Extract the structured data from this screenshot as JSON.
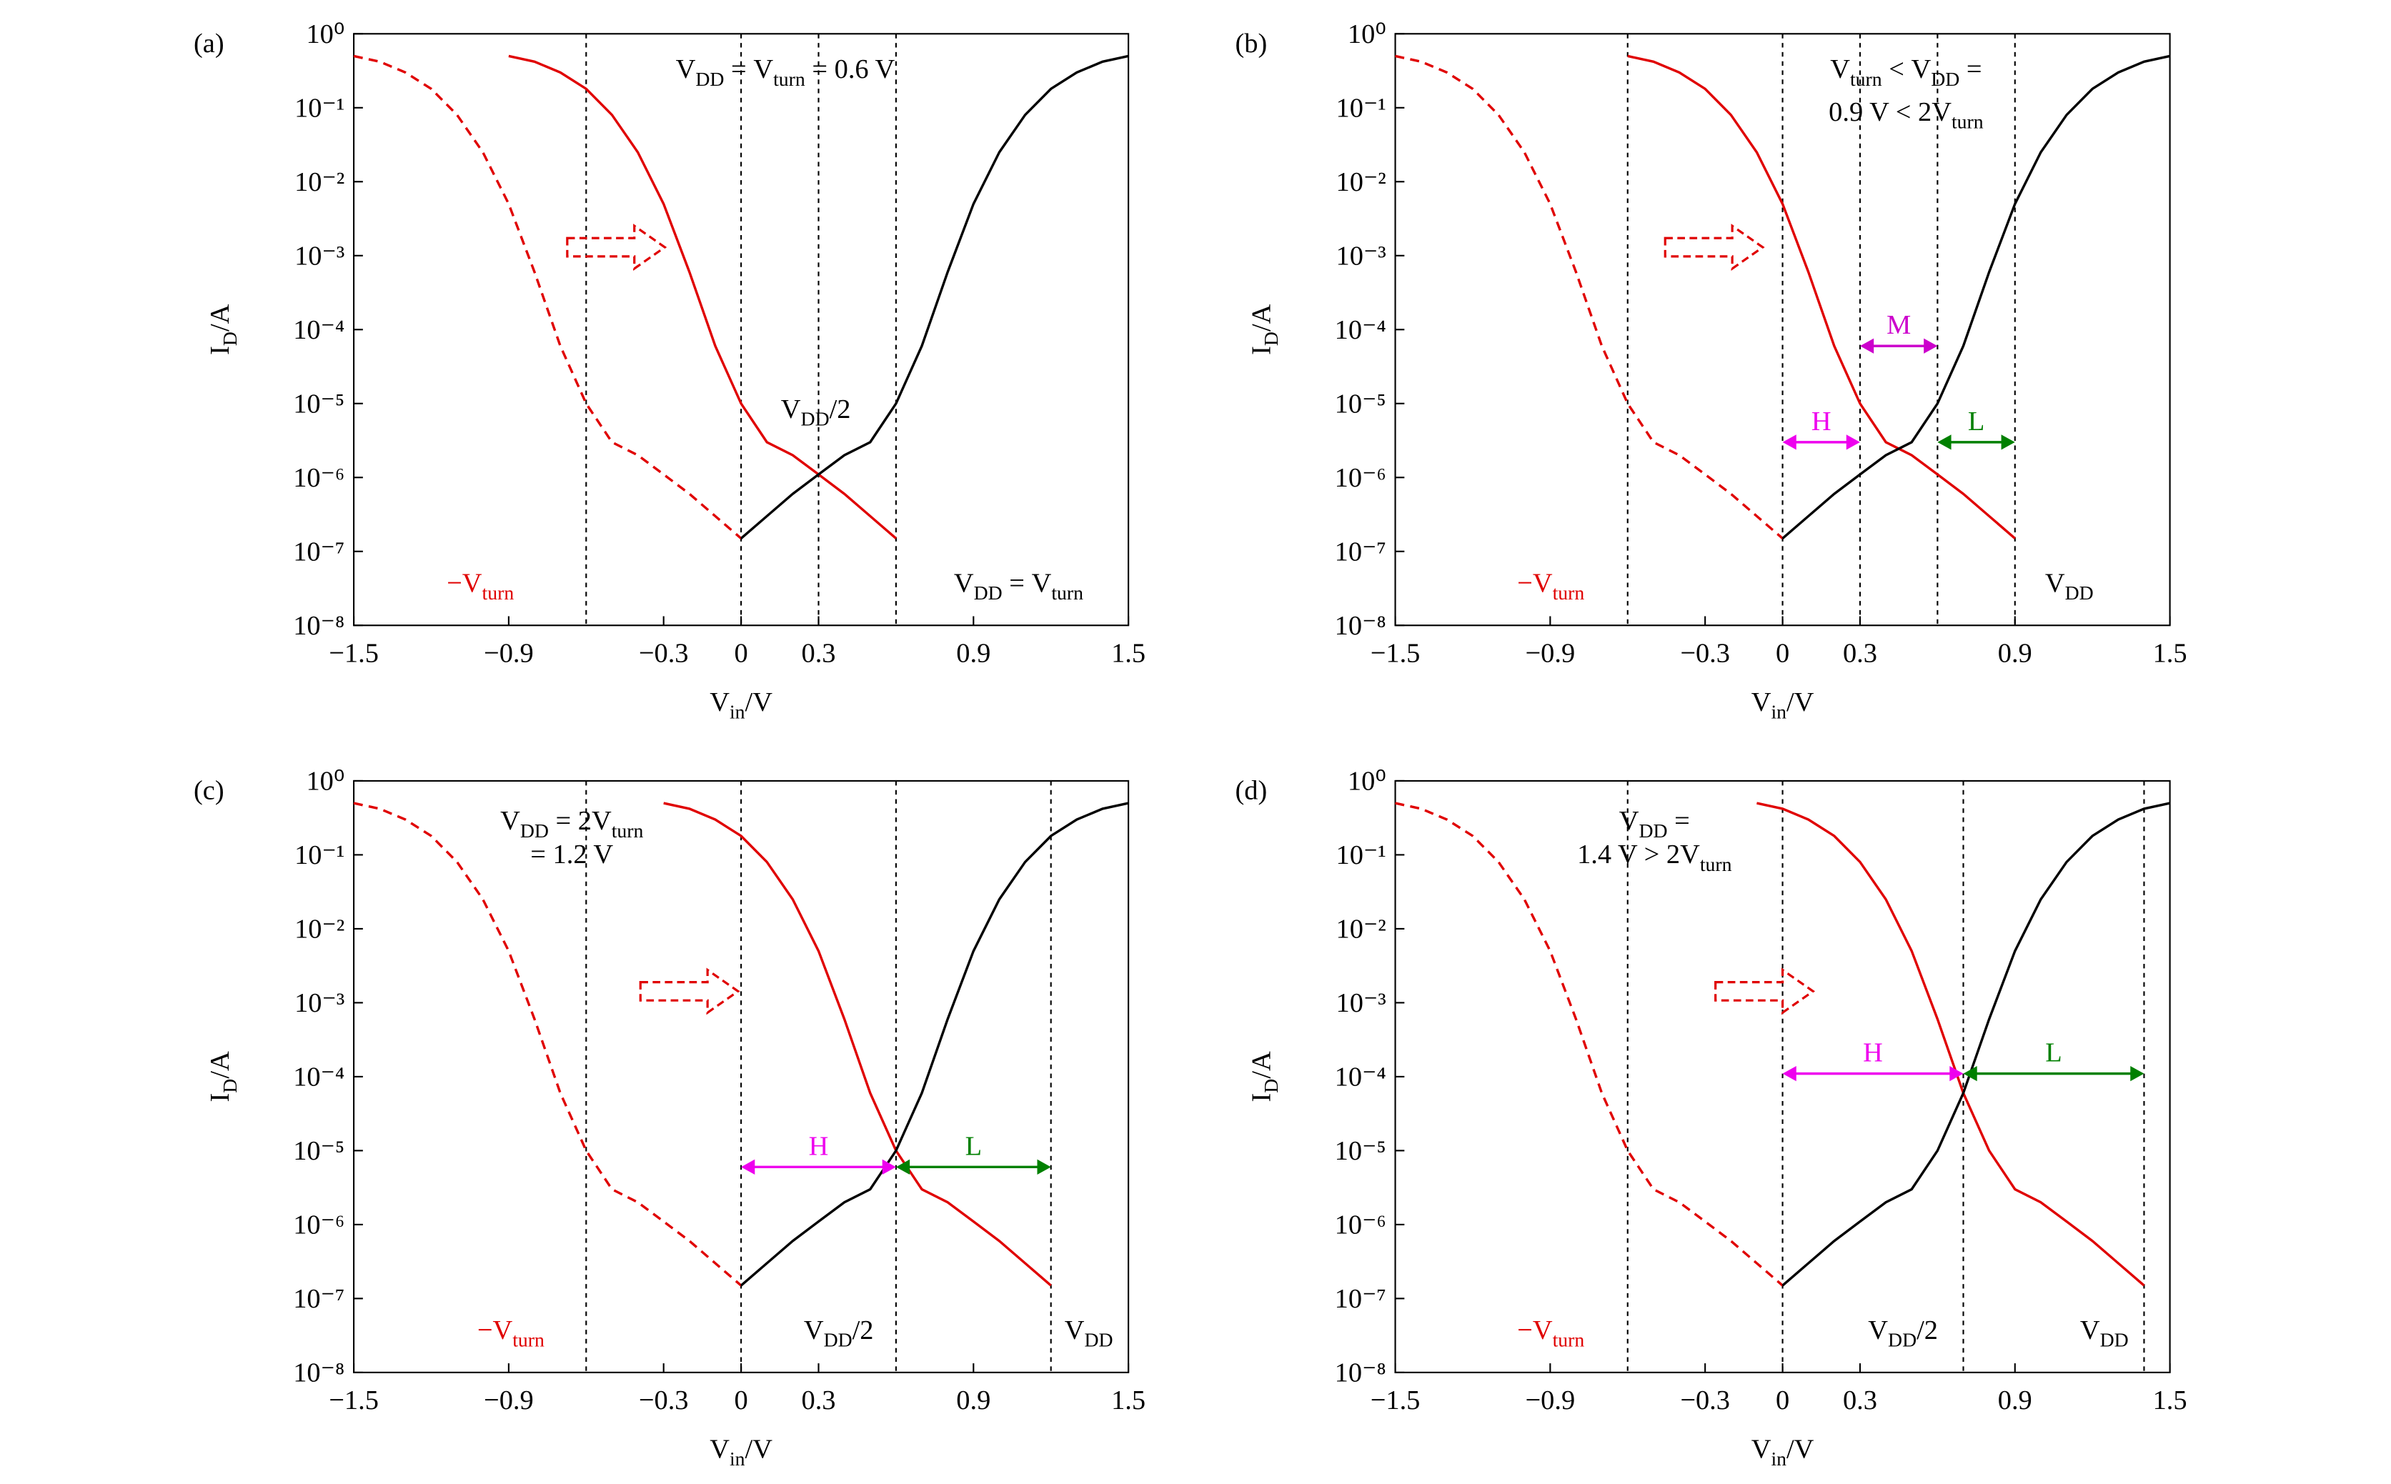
{
  "chart_data": [
    {
      "type": "line",
      "panel_label": "(a)",
      "xlabel": {
        "parts": [
          "V",
          "in",
          "/V"
        ],
        "sub": [
          false,
          true,
          false
        ]
      },
      "ylabel": {
        "parts": [
          "I",
          "D",
          "/A"
        ],
        "sub": [
          false,
          true,
          false
        ]
      },
      "xlim": [
        -1.5,
        1.5
      ],
      "ylim": [
        1e-08,
        1
      ],
      "log_y": true,
      "xticks": [
        {
          "value": -1.5,
          "label": "−1.5"
        },
        {
          "value": -0.9,
          "label": "−0.9"
        },
        {
          "value": -0.3,
          "label": "−0.3"
        },
        0,
        0.3,
        0.9,
        1.5
      ],
      "yticks": [
        {
          "value": 1e-08,
          "label": "10⁻⁸"
        },
        {
          "value": 1e-07,
          "label": "10⁻⁷"
        },
        {
          "value": 1e-06,
          "label": "10⁻⁶"
        },
        {
          "value": 1e-05,
          "label": "10⁻⁵"
        },
        {
          "value": 0.0001,
          "label": "10⁻⁴"
        },
        {
          "value": 0.001,
          "label": "10⁻³"
        },
        {
          "value": 0.01,
          "label": "10⁻²"
        },
        {
          "value": 0.1,
          "label": "10⁻¹"
        },
        {
          "value": 1,
          "label": "10⁰"
        }
      ],
      "vlines": [
        -0.6,
        0,
        0.3,
        0.6
      ],
      "series": [
        {
          "color": "#e00000",
          "dash": true,
          "x": [
            -1.5,
            -1.4,
            -1.3,
            -1.2,
            -1.1,
            -1.0,
            -0.9,
            -0.8,
            -0.7,
            -0.6,
            -0.5,
            -0.4,
            -0.3,
            -0.2,
            -0.1,
            0
          ],
          "values": [
            0.5,
            0.42,
            0.3,
            0.18,
            0.08,
            0.025,
            0.005,
            0.0006,
            6e-05,
            1e-05,
            3e-06,
            2e-06,
            1.1e-06,
            6e-07,
            3e-07,
            1.5e-07
          ]
        },
        {
          "color": "#e00000",
          "dash": false,
          "x": [
            -0.9,
            -0.8,
            -0.7,
            -0.6,
            -0.5,
            -0.4,
            -0.3,
            -0.2,
            -0.1,
            0,
            0.1,
            0.2,
            0.3,
            0.4,
            0.5,
            0.6
          ],
          "values": [
            0.5,
            0.42,
            0.3,
            0.18,
            0.08,
            0.025,
            0.005,
            0.0006,
            6e-05,
            1e-05,
            3e-06,
            2e-06,
            1.1e-06,
            6e-07,
            3e-07,
            1.5e-07
          ]
        },
        {
          "color": "#000000",
          "dash": false,
          "x": [
            0,
            0.1,
            0.2,
            0.3,
            0.4,
            0.5,
            0.6,
            0.7,
            0.8,
            0.9,
            1.0,
            1.1,
            1.2,
            1.3,
            1.4,
            1.5
          ],
          "values": [
            1.5e-07,
            3e-07,
            6e-07,
            1.1e-06,
            2e-06,
            3e-06,
            1e-05,
            6e-05,
            0.0006,
            0.005,
            0.025,
            0.08,
            0.18,
            0.3,
            0.42,
            0.5
          ]
        }
      ],
      "annotations": [
        {
          "parts": [
            "V",
            "DD",
            " = ",
            "V",
            "turn",
            " = 0.6 V"
          ],
          "sub": [
            false,
            true,
            false,
            false,
            true,
            false
          ]
        },
        {
          "parts": [
            "V",
            "DD",
            "/2"
          ],
          "sub": [
            false,
            true,
            false
          ]
        },
        {
          "parts": [
            "−V",
            "turn"
          ],
          "sub": [
            false,
            true
          ],
          "color": "#e00000"
        },
        {
          "parts": [
            "V",
            "DD",
            " = ",
            "V",
            "turn"
          ],
          "sub": [
            false,
            true,
            false,
            false,
            true
          ]
        }
      ],
      "spans": []
    },
    {
      "type": "line",
      "panel_label": "(b)",
      "xlabel": {
        "parts": [
          "V",
          "in",
          "/V"
        ],
        "sub": [
          false,
          true,
          false
        ]
      },
      "ylabel": {
        "parts": [
          "I",
          "D",
          "/A"
        ],
        "sub": [
          false,
          true,
          false
        ]
      },
      "xlim": [
        -1.5,
        1.5
      ],
      "ylim": [
        1e-08,
        1
      ],
      "log_y": true,
      "xticks": [
        {
          "value": -1.5,
          "label": "−1.5"
        },
        {
          "value": -0.9,
          "label": "−0.9"
        },
        {
          "value": -0.3,
          "label": "−0.3"
        },
        0,
        0.3,
        0.9,
        1.5
      ],
      "yticks": [
        {
          "value": 1e-08,
          "label": "10⁻⁸"
        },
        {
          "value": 1e-07,
          "label": "10⁻⁷"
        },
        {
          "value": 1e-06,
          "label": "10⁻⁶"
        },
        {
          "value": 1e-05,
          "label": "10⁻⁵"
        },
        {
          "value": 0.0001,
          "label": "10⁻⁴"
        },
        {
          "value": 0.001,
          "label": "10⁻³"
        },
        {
          "value": 0.01,
          "label": "10⁻²"
        },
        {
          "value": 0.1,
          "label": "10⁻¹"
        },
        {
          "value": 1,
          "label": "10⁰"
        }
      ],
      "vlines": [
        -0.6,
        0,
        0.3,
        0.6,
        0.9
      ],
      "series": [
        {
          "color": "#e00000",
          "dash": true,
          "x": [
            -1.5,
            -1.4,
            -1.3,
            -1.2,
            -1.1,
            -1.0,
            -0.9,
            -0.8,
            -0.7,
            -0.6,
            -0.5,
            -0.4,
            -0.3,
            -0.2,
            -0.1,
            0
          ],
          "values": [
            0.5,
            0.42,
            0.3,
            0.18,
            0.08,
            0.025,
            0.005,
            0.0006,
            6e-05,
            1e-05,
            3e-06,
            2e-06,
            1.1e-06,
            6e-07,
            3e-07,
            1.5e-07
          ]
        },
        {
          "color": "#e00000",
          "dash": false,
          "x": [
            -0.6,
            -0.5,
            -0.4,
            -0.3,
            -0.2,
            -0.1,
            0,
            0.1,
            0.2,
            0.3,
            0.4,
            0.5,
            0.6,
            0.7,
            0.8,
            0.9
          ],
          "values": [
            0.5,
            0.42,
            0.3,
            0.18,
            0.08,
            0.025,
            0.005,
            0.0006,
            6e-05,
            1e-05,
            3e-06,
            2e-06,
            1.1e-06,
            6e-07,
            3e-07,
            1.5e-07
          ]
        },
        {
          "color": "#000000",
          "dash": false,
          "x": [
            0,
            0.1,
            0.2,
            0.3,
            0.4,
            0.5,
            0.6,
            0.7,
            0.8,
            0.9,
            1.0,
            1.1,
            1.2,
            1.3,
            1.4,
            1.5
          ],
          "values": [
            1.5e-07,
            3e-07,
            6e-07,
            1.1e-06,
            2e-06,
            3e-06,
            1e-05,
            6e-05,
            0.0006,
            0.005,
            0.025,
            0.08,
            0.18,
            0.3,
            0.42,
            0.5
          ]
        }
      ],
      "annotations": [
        {
          "parts": [
            "V",
            "turn",
            " < ",
            "V",
            "DD",
            " ="
          ],
          "sub": [
            false,
            true,
            false,
            false,
            true,
            false
          ]
        },
        {
          "parts": [
            "0.9 V < 2V",
            "turn"
          ],
          "sub": [
            false,
            true
          ]
        },
        {
          "parts": [
            "−V",
            "turn"
          ],
          "sub": [
            false,
            true
          ],
          "color": "#e00000"
        },
        {
          "parts": [
            "V",
            "DD"
          ],
          "sub": [
            false,
            true
          ]
        }
      ],
      "spans": [
        {
          "label": "M",
          "color": "#cc00cc",
          "from": 0.3,
          "to": 0.6,
          "at": 6e-05
        },
        {
          "label": "H",
          "color": "#ee00ee",
          "from": 0,
          "to": 0.3,
          "at": 3e-06
        },
        {
          "label": "L",
          "color": "#008000",
          "from": 0.6,
          "to": 0.9,
          "at": 3e-06
        }
      ]
    },
    {
      "type": "line",
      "panel_label": "(c)",
      "xlabel": {
        "parts": [
          "V",
          "in",
          "/V"
        ],
        "sub": [
          false,
          true,
          false
        ]
      },
      "ylabel": {
        "parts": [
          "I",
          "D",
          "/A"
        ],
        "sub": [
          false,
          true,
          false
        ]
      },
      "xlim": [
        -1.5,
        1.5
      ],
      "ylim": [
        1e-08,
        1
      ],
      "log_y": true,
      "xticks": [
        {
          "value": -1.5,
          "label": "−1.5"
        },
        {
          "value": -0.9,
          "label": "−0.9"
        },
        {
          "value": -0.3,
          "label": "−0.3"
        },
        0,
        0.3,
        0.9,
        1.5
      ],
      "yticks": [
        {
          "value": 1e-08,
          "label": "10⁻⁸"
        },
        {
          "value": 1e-07,
          "label": "10⁻⁷"
        },
        {
          "value": 1e-06,
          "label": "10⁻⁶"
        },
        {
          "value": 1e-05,
          "label": "10⁻⁵"
        },
        {
          "value": 0.0001,
          "label": "10⁻⁴"
        },
        {
          "value": 0.001,
          "label": "10⁻³"
        },
        {
          "value": 0.01,
          "label": "10⁻²"
        },
        {
          "value": 0.1,
          "label": "10⁻¹"
        },
        {
          "value": 1,
          "label": "10⁰"
        }
      ],
      "vlines": [
        -0.6,
        0,
        0.6,
        1.2
      ],
      "series": [
        {
          "color": "#e00000",
          "dash": true,
          "x": [
            -1.5,
            -1.4,
            -1.3,
            -1.2,
            -1.1,
            -1.0,
            -0.9,
            -0.8,
            -0.7,
            -0.6,
            -0.5,
            -0.4,
            -0.3,
            -0.2,
            -0.1,
            0
          ],
          "values": [
            0.5,
            0.42,
            0.3,
            0.18,
            0.08,
            0.025,
            0.005,
            0.0006,
            6e-05,
            1e-05,
            3e-06,
            2e-06,
            1.1e-06,
            6e-07,
            3e-07,
            1.5e-07
          ]
        },
        {
          "color": "#e00000",
          "dash": false,
          "x": [
            -0.3,
            -0.2,
            -0.1,
            0,
            0.1,
            0.2,
            0.3,
            0.4,
            0.5,
            0.6,
            0.7,
            0.8,
            0.9,
            1.0,
            1.1,
            1.2
          ],
          "values": [
            0.5,
            0.42,
            0.3,
            0.18,
            0.08,
            0.025,
            0.005,
            0.0006,
            6e-05,
            1e-05,
            3e-06,
            2e-06,
            1.1e-06,
            6e-07,
            3e-07,
            1.5e-07
          ]
        },
        {
          "color": "#000000",
          "dash": false,
          "x": [
            0,
            0.1,
            0.2,
            0.3,
            0.4,
            0.5,
            0.6,
            0.7,
            0.8,
            0.9,
            1.0,
            1.1,
            1.2,
            1.3,
            1.4,
            1.5
          ],
          "values": [
            1.5e-07,
            3e-07,
            6e-07,
            1.1e-06,
            2e-06,
            3e-06,
            1e-05,
            6e-05,
            0.0006,
            0.005,
            0.025,
            0.08,
            0.18,
            0.3,
            0.42,
            0.5
          ]
        }
      ],
      "annotations": [
        {
          "parts": [
            "V",
            "DD",
            " = 2V",
            "turn"
          ],
          "sub": [
            false,
            true,
            false,
            true
          ]
        },
        {
          "parts": [
            "= 1.2 V"
          ],
          "sub": [
            false
          ]
        },
        {
          "parts": [
            "−V",
            "turn"
          ],
          "sub": [
            false,
            true
          ],
          "color": "#e00000"
        },
        {
          "parts": [
            "V",
            "DD",
            "/2"
          ],
          "sub": [
            false,
            true,
            false
          ]
        },
        {
          "parts": [
            "V",
            "DD"
          ],
          "sub": [
            false,
            true
          ]
        }
      ],
      "spans": [
        {
          "label": "H",
          "color": "#ee00ee",
          "from": 0,
          "to": 0.6,
          "at": 6e-06
        },
        {
          "label": "L",
          "color": "#008000",
          "from": 0.6,
          "to": 1.2,
          "at": 6e-06
        }
      ]
    },
    {
      "type": "line",
      "panel_label": "(d)",
      "xlabel": {
        "parts": [
          "V",
          "in",
          "/V"
        ],
        "sub": [
          false,
          true,
          false
        ]
      },
      "ylabel": {
        "parts": [
          "I",
          "D",
          "/A"
        ],
        "sub": [
          false,
          true,
          false
        ]
      },
      "xlim": [
        -1.5,
        1.5
      ],
      "ylim": [
        1e-08,
        1
      ],
      "log_y": true,
      "xticks": [
        {
          "value": -1.5,
          "label": "−1.5"
        },
        {
          "value": -0.9,
          "label": "−0.9"
        },
        {
          "value": -0.3,
          "label": "−0.3"
        },
        0,
        0.3,
        0.9,
        1.5
      ],
      "yticks": [
        {
          "value": 1e-08,
          "label": "10⁻⁸"
        },
        {
          "value": 1e-07,
          "label": "10⁻⁷"
        },
        {
          "value": 1e-06,
          "label": "10⁻⁶"
        },
        {
          "value": 1e-05,
          "label": "10⁻⁵"
        },
        {
          "value": 0.0001,
          "label": "10⁻⁴"
        },
        {
          "value": 0.001,
          "label": "10⁻³"
        },
        {
          "value": 0.01,
          "label": "10⁻²"
        },
        {
          "value": 0.1,
          "label": "10⁻¹"
        },
        {
          "value": 1,
          "label": "10⁰"
        }
      ],
      "vlines": [
        -0.6,
        0,
        0.7,
        1.4
      ],
      "series": [
        {
          "color": "#e00000",
          "dash": true,
          "x": [
            -1.5,
            -1.4,
            -1.3,
            -1.2,
            -1.1,
            -1.0,
            -0.9,
            -0.8,
            -0.7,
            -0.6,
            -0.5,
            -0.4,
            -0.3,
            -0.2,
            -0.1,
            0
          ],
          "values": [
            0.5,
            0.42,
            0.3,
            0.18,
            0.08,
            0.025,
            0.005,
            0.0006,
            6e-05,
            1e-05,
            3e-06,
            2e-06,
            1.1e-06,
            6e-07,
            3e-07,
            1.5e-07
          ]
        },
        {
          "color": "#e00000",
          "dash": false,
          "x": [
            -0.1,
            0,
            0.1,
            0.2,
            0.3,
            0.4,
            0.5,
            0.6,
            0.7,
            0.8,
            0.9,
            1.0,
            1.1,
            1.2,
            1.3,
            1.4
          ],
          "values": [
            0.5,
            0.42,
            0.3,
            0.18,
            0.08,
            0.025,
            0.005,
            0.0006,
            6e-05,
            1e-05,
            3e-06,
            2e-06,
            1.1e-06,
            6e-07,
            3e-07,
            1.5e-07
          ]
        },
        {
          "color": "#000000",
          "dash": false,
          "x": [
            0,
            0.1,
            0.2,
            0.3,
            0.4,
            0.5,
            0.6,
            0.7,
            0.8,
            0.9,
            1.0,
            1.1,
            1.2,
            1.3,
            1.4,
            1.5
          ],
          "values": [
            1.5e-07,
            3e-07,
            6e-07,
            1.1e-06,
            2e-06,
            3e-06,
            1e-05,
            6e-05,
            0.0006,
            0.005,
            0.025,
            0.08,
            0.18,
            0.3,
            0.42,
            0.5
          ]
        }
      ],
      "annotations": [
        {
          "parts": [
            "V",
            "DD",
            " ="
          ],
          "sub": [
            false,
            true,
            false
          ]
        },
        {
          "parts": [
            "1.4 V > 2V",
            "turn"
          ],
          "sub": [
            false,
            true
          ]
        },
        {
          "parts": [
            "−V",
            "turn"
          ],
          "sub": [
            false,
            true
          ],
          "color": "#e00000"
        },
        {
          "parts": [
            "V",
            "DD",
            "/2"
          ],
          "sub": [
            false,
            true,
            false
          ]
        },
        {
          "parts": [
            "V",
            "DD"
          ],
          "sub": [
            false,
            true
          ]
        }
      ],
      "spans": [
        {
          "label": "H",
          "color": "#ee00ee",
          "from": 0,
          "to": 0.7,
          "at": 0.00011
        },
        {
          "label": "L",
          "color": "#008000",
          "from": 0.7,
          "to": 1.4,
          "at": 0.00011
        }
      ]
    }
  ]
}
